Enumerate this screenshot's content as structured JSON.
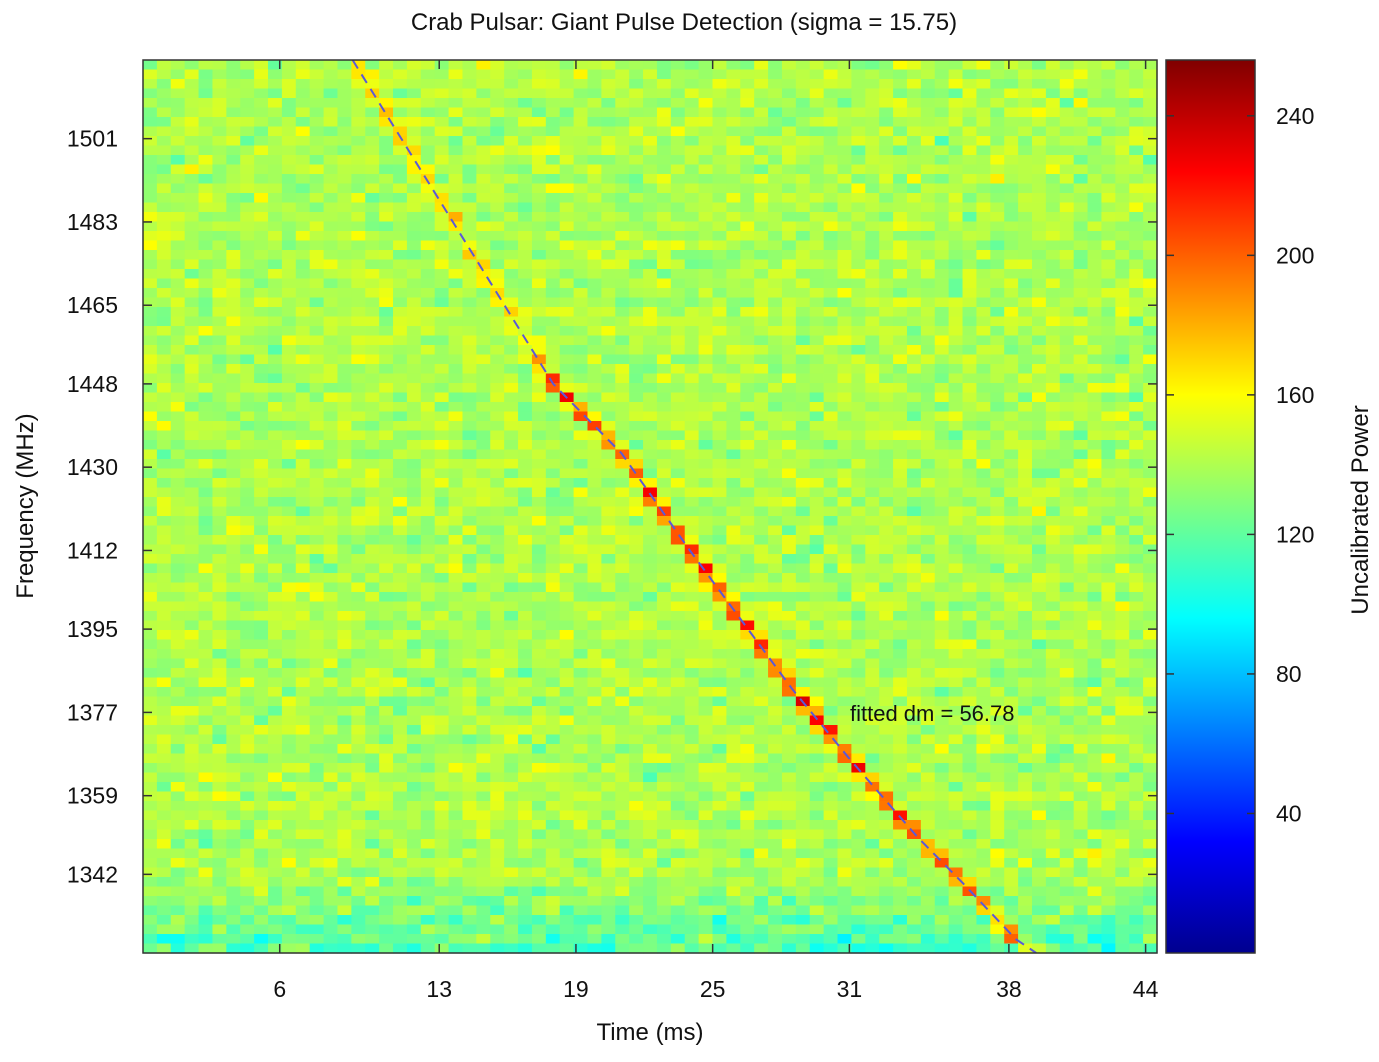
{
  "chart_data": {
    "type": "heatmap",
    "title": "Crab Pulsar: Giant Pulse Detection (sigma = 15.75)",
    "xlabel": "Time (ms)",
    "ylabel": "Frequency (MHz)",
    "colorbar_label": "Uncalibrated Power",
    "annotation": "fitted dm = 56.78",
    "x_ticks": [
      "6",
      "13",
      "19",
      "25",
      "31",
      "38",
      "44"
    ],
    "y_ticks": [
      "1501",
      "1483",
      "1465",
      "1448",
      "1430",
      "1412",
      "1395",
      "1377",
      "1359",
      "1342"
    ],
    "colorbar_ticks": [
      "240",
      "200",
      "160",
      "120",
      "80",
      "40"
    ],
    "xlim": [
      0,
      44.5
    ],
    "ylim": [
      1325,
      1518
    ],
    "clim": [
      0,
      256
    ],
    "colormap": "jet",
    "grid": false,
    "background_power": 140,
    "pulse_track": {
      "style": "dashed",
      "color": "#5a5ad8",
      "points": [
        [
          9.2,
          1518
        ],
        [
          18,
          1448
        ],
        [
          21,
          1433
        ],
        [
          24,
          1412
        ],
        [
          28.5,
          1382
        ],
        [
          31,
          1367
        ],
        [
          34,
          1350
        ],
        [
          36,
          1340
        ],
        [
          38.3,
          1328
        ],
        [
          39.2,
          1325
        ]
      ]
    }
  }
}
